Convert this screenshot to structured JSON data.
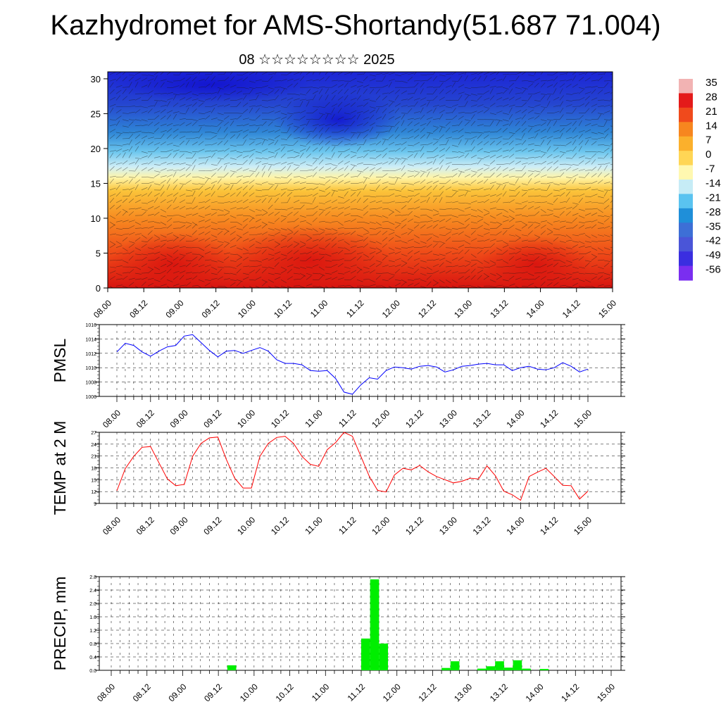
{
  "title": "Kazhydromet for AMS-Shortandy(51.687 71.004)",
  "subtitle": "08 ☆☆☆☆☆☆☆☆ 2025",
  "time_labels": [
    "08.00",
    "08.12",
    "09.00",
    "09.12",
    "10.00",
    "10.12",
    "11.00",
    "11.12",
    "12.00",
    "12.12",
    "13.00",
    "13.12",
    "14.00",
    "14.12",
    "15.00"
  ],
  "colorbar": {
    "labels": [
      "35",
      "28",
      "21",
      "14",
      "7",
      "0",
      "-7",
      "-14",
      "-21",
      "-28",
      "-35",
      "-42",
      "-49",
      "-56"
    ],
    "colors": [
      "#f2b3b3",
      "#e41a1a",
      "#f04a1c",
      "#f7861f",
      "#fbb02c",
      "#ffd655",
      "#fff8b0",
      "#c6ecf6",
      "#5ac3f0",
      "#1f8fd9",
      "#3d6fd6",
      "#4a55d8",
      "#3a2ee0",
      "#7a2ef0"
    ]
  },
  "chart_data": [
    {
      "type": "heatmap",
      "title": "",
      "xlabel": "",
      "ylabel": "",
      "y_ticks": [
        0,
        5,
        10,
        15,
        20,
        25,
        30
      ],
      "ylim": [
        0,
        31
      ],
      "x": [
        "08.00",
        "08.12",
        "09.00",
        "09.12",
        "10.00",
        "10.12",
        "11.00",
        "11.12",
        "12.00",
        "12.12",
        "13.00",
        "13.12",
        "14.00",
        "14.12",
        "15.00"
      ],
      "temperature_profile_by_height": [
        {
          "height": 0,
          "value": 20
        },
        {
          "height": 5,
          "value": 16
        },
        {
          "height": 10,
          "value": 8
        },
        {
          "height": 15,
          "value": -8
        },
        {
          "height": 20,
          "value": -35
        },
        {
          "height": 25,
          "value": -52
        },
        {
          "height": 30,
          "value": -56
        }
      ],
      "overlay": "wind barbs"
    },
    {
      "type": "line",
      "ylabel": "PMSL",
      "ylim": [
        1006,
        1016
      ],
      "y_ticks": [
        1006,
        1008,
        1010,
        1012,
        1014,
        1016
      ],
      "series": [
        {
          "color": "#0000ff",
          "values": [
            1012.2,
            1013.4,
            1013.1,
            1012.2,
            1011.6,
            1012.3,
            1012.9,
            1013.1,
            1014.4,
            1014.6,
            1013.5,
            1012.4,
            1011.5,
            1012.3,
            1012.4,
            1012.0,
            1012.4,
            1012.8,
            1012.3,
            1011.1,
            1010.6,
            1010.6,
            1010.4,
            1009.6,
            1009.5,
            1009.6,
            1008.5,
            1006.6,
            1006.3,
            1007.6,
            1008.6,
            1008.4,
            1009.6,
            1010.1,
            1010.0,
            1009.8,
            1010.2,
            1010.3,
            1010.1,
            1009.4,
            1009.7,
            1010.2,
            1010.3,
            1010.5,
            1010.6,
            1010.4,
            1010.4,
            1009.6,
            1010.0,
            1010.2,
            1009.8,
            1009.7,
            1010.0,
            1010.7,
            1010.2,
            1009.4,
            1009.8
          ]
        }
      ]
    },
    {
      "type": "line",
      "ylabel": "TEMP at 2 M",
      "ylim": [
        9,
        27
      ],
      "y_ticks": [
        9,
        12,
        15,
        18,
        21,
        24,
        27
      ],
      "series": [
        {
          "color": "#ff0000",
          "values": [
            12.2,
            17.8,
            20.9,
            23.2,
            23.4,
            19.3,
            15.2,
            13.5,
            13.8,
            20.9,
            24.2,
            25.6,
            25.8,
            20.2,
            15.4,
            12.9,
            12.9,
            20.9,
            24.2,
            25.7,
            26.0,
            24.2,
            20.9,
            18.9,
            18.4,
            22.6,
            24.4,
            27.0,
            26.0,
            21.0,
            15.9,
            12.3,
            11.9,
            16.2,
            17.9,
            17.5,
            18.6,
            17.0,
            15.8,
            15.0,
            14.2,
            14.6,
            15.4,
            15.2,
            18.5,
            16.0,
            12.1,
            11.2,
            9.8,
            15.8,
            16.9,
            17.9,
            15.8,
            13.6,
            13.5,
            10.1,
            12.1
          ]
        }
      ]
    },
    {
      "type": "bar",
      "ylabel": "PRECIP, mm",
      "ylim": [
        0,
        2.8
      ],
      "y_ticks": [
        "0.0",
        "0.4",
        "0.8",
        "1.2",
        "1.6",
        "2.0",
        "2.4",
        "2.8"
      ],
      "color": "#00ee00",
      "bars": [
        {
          "x": 13.5,
          "value": 0.15
        },
        {
          "x": 28.5,
          "value": 0.95
        },
        {
          "x": 29.5,
          "value": 2.72
        },
        {
          "x": 30.5,
          "value": 0.8
        },
        {
          "x": 37.5,
          "value": 0.07
        },
        {
          "x": 38.5,
          "value": 0.27
        },
        {
          "x": 41.5,
          "value": 0.05
        },
        {
          "x": 42.5,
          "value": 0.12
        },
        {
          "x": 43.5,
          "value": 0.27
        },
        {
          "x": 44.5,
          "value": 0.08
        },
        {
          "x": 45.5,
          "value": 0.3
        },
        {
          "x": 46.5,
          "value": 0.05
        },
        {
          "x": 48.5,
          "value": 0.04
        }
      ]
    }
  ]
}
